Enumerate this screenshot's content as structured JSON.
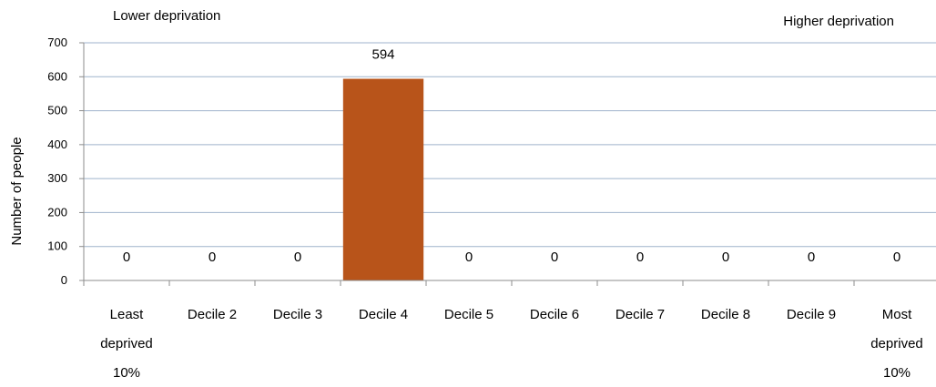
{
  "annotations": {
    "left": "Lower deprivation",
    "right": "Higher deprivation"
  },
  "colors": {
    "bar": "#B8541A",
    "grid": "#9FB3CC",
    "axis": "#8C8C8C"
  },
  "chart_data": {
    "type": "bar",
    "categories": [
      [
        "Least",
        "deprived",
        "10%"
      ],
      [
        "Decile 2"
      ],
      [
        "Decile 3"
      ],
      [
        "Decile 4"
      ],
      [
        "Decile 5"
      ],
      [
        "Decile 6"
      ],
      [
        "Decile 7"
      ],
      [
        "Decile 8"
      ],
      [
        "Decile 9"
      ],
      [
        "Most",
        "deprived",
        "10%"
      ]
    ],
    "values": [
      0,
      0,
      0,
      594,
      0,
      0,
      0,
      0,
      0,
      0
    ],
    "title": "",
    "xlabel": "",
    "ylabel": "Number of people",
    "ylim": [
      0,
      700
    ],
    "yticks": [
      0,
      100,
      200,
      300,
      400,
      500,
      600,
      700
    ],
    "grid": true,
    "legend": "none"
  }
}
